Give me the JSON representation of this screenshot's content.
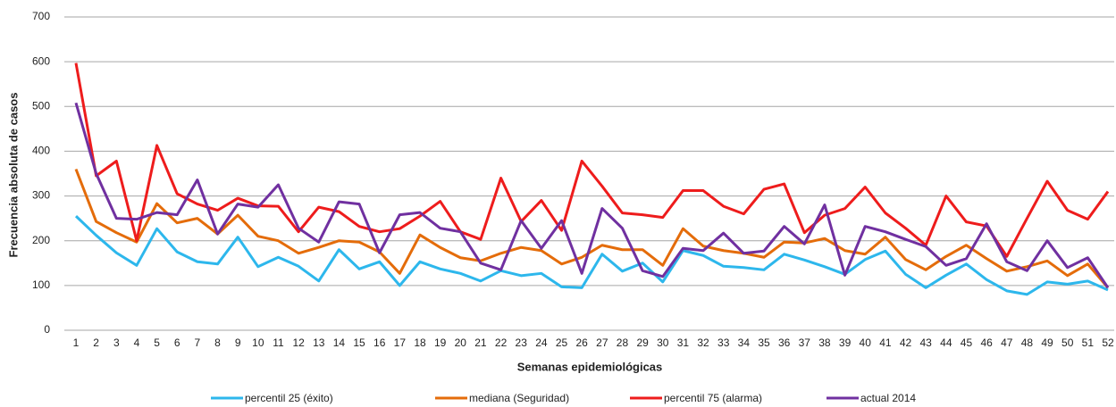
{
  "chart_data": {
    "type": "line",
    "x_label": "Semanas epidemiológicas",
    "y_label": "Frecuencia absoluta de casos",
    "categories": [
      1,
      2,
      3,
      4,
      5,
      6,
      7,
      8,
      9,
      10,
      11,
      12,
      13,
      14,
      15,
      16,
      17,
      18,
      19,
      20,
      21,
      22,
      23,
      24,
      25,
      26,
      27,
      28,
      29,
      30,
      31,
      32,
      33,
      34,
      35,
      36,
      37,
      38,
      39,
      40,
      41,
      42,
      43,
      44,
      45,
      46,
      47,
      48,
      49,
      50,
      51,
      52
    ],
    "ylim": [
      0,
      700
    ],
    "yticks": [
      0,
      100,
      200,
      300,
      400,
      500,
      600,
      700
    ],
    "grid": true,
    "legend": "bottom",
    "series": [
      {
        "name": "percentil 25 (éxito)",
        "color": "#2db7ec",
        "values": [
          255,
          212,
          173,
          145,
          227,
          175,
          153,
          148,
          208,
          142,
          163,
          143,
          110,
          180,
          137,
          153,
          100,
          153,
          137,
          127,
          110,
          133,
          122,
          127,
          97,
          95,
          170,
          132,
          150,
          108,
          178,
          167,
          143,
          140,
          135,
          170,
          157,
          142,
          125,
          158,
          177,
          125,
          95,
          123,
          148,
          113,
          88,
          80,
          108,
          103,
          110,
          90
        ]
      },
      {
        "name": "mediana (Seguridad)",
        "color": "#e46c0a",
        "values": [
          360,
          243,
          218,
          197,
          283,
          240,
          250,
          215,
          257,
          210,
          200,
          172,
          185,
          200,
          197,
          175,
          127,
          213,
          185,
          162,
          155,
          172,
          185,
          178,
          148,
          163,
          190,
          180,
          180,
          145,
          227,
          188,
          178,
          172,
          163,
          197,
          195,
          205,
          178,
          170,
          208,
          158,
          135,
          165,
          190,
          160,
          132,
          142,
          155,
          122,
          148,
          95
        ]
      },
      {
        "name": "percentil 75 (alarma)",
        "color": "#ee1c1c",
        "values": [
          597,
          345,
          378,
          200,
          413,
          305,
          282,
          268,
          295,
          278,
          277,
          220,
          275,
          265,
          232,
          220,
          227,
          255,
          288,
          220,
          203,
          340,
          243,
          290,
          223,
          378,
          322,
          262,
          258,
          252,
          312,
          312,
          277,
          260,
          315,
          327,
          218,
          257,
          272,
          320,
          262,
          228,
          190,
          300,
          242,
          233,
          165,
          250,
          333,
          268,
          248,
          310
        ]
      },
      {
        "name": "actual 2014",
        "color": "#7030a0",
        "values": [
          508,
          350,
          250,
          248,
          263,
          258,
          336,
          215,
          282,
          275,
          325,
          228,
          197,
          287,
          282,
          173,
          258,
          263,
          228,
          220,
          150,
          135,
          245,
          183,
          245,
          127,
          272,
          228,
          133,
          120,
          183,
          178,
          217,
          172,
          177,
          232,
          193,
          280,
          123,
          232,
          220,
          203,
          187,
          145,
          160,
          238,
          153,
          133,
          200,
          140,
          162,
          95
        ]
      }
    ]
  }
}
